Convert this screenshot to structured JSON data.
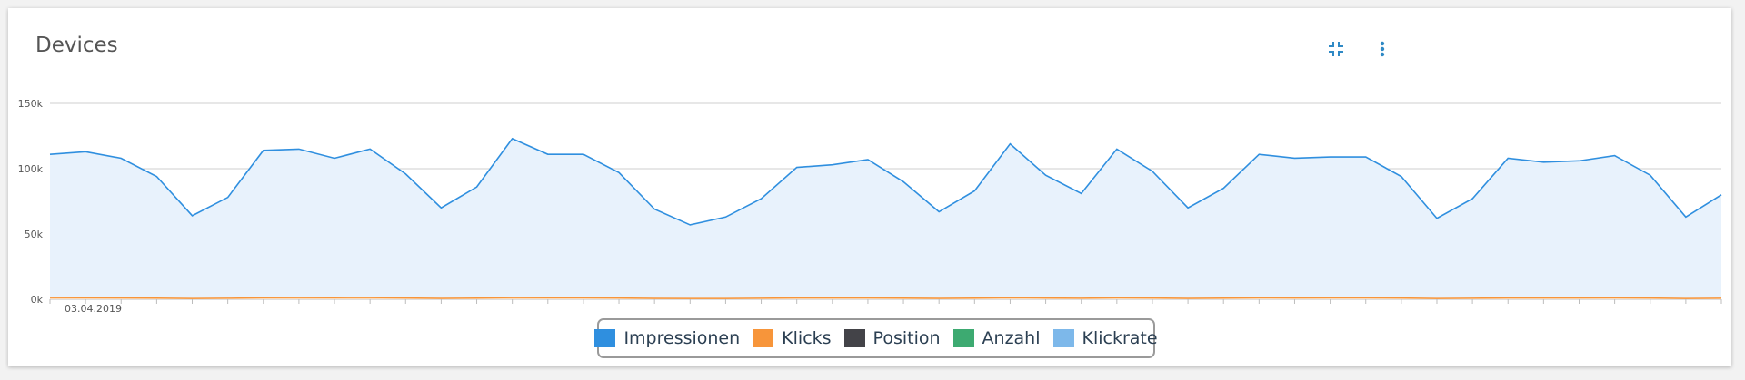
{
  "card": {
    "title": "Devices",
    "icons": {
      "collapse": "collapse-icon",
      "menu": "more-vert-icon"
    },
    "accent_color": "#2f89c5"
  },
  "chart_data": {
    "type": "area",
    "title": "Devices",
    "xlabel": "",
    "ylabel": "",
    "ylim": [
      0,
      150000
    ],
    "yticks": [
      0,
      50000,
      100000,
      150000
    ],
    "ytick_labels": [
      "0k",
      "50k",
      "100k",
      "150k"
    ],
    "x_tick_label": "03.04.2019",
    "grid": true,
    "legend_position": "bottom",
    "series": [
      {
        "name": "Impressionen",
        "color": "#2f8fdf",
        "fill": "#e8f2fc",
        "values": [
          111000,
          113000,
          108000,
          94000,
          64000,
          78000,
          114000,
          115000,
          108000,
          115000,
          96000,
          70000,
          86000,
          123000,
          111000,
          111000,
          97000,
          69000,
          57000,
          63000,
          77000,
          101000,
          103000,
          107000,
          90000,
          67000,
          83000,
          119000,
          95000,
          81000,
          115000,
          98000,
          70000,
          85000,
          111000,
          108000,
          109000,
          109000,
          94000,
          62000,
          77000,
          108000,
          105000,
          106000,
          110000,
          95000,
          63000,
          80000
        ]
      },
      {
        "name": "Klicks",
        "color": "#f7953a",
        "values": [
          1300,
          1200,
          1100,
          900,
          600,
          800,
          1200,
          1300,
          1200,
          1300,
          1000,
          700,
          900,
          1300,
          1200,
          1200,
          1000,
          700,
          600,
          600,
          800,
          1100,
          1100,
          1100,
          900,
          700,
          900,
          1300,
          1000,
          800,
          1200,
          1000,
          700,
          900,
          1200,
          1100,
          1200,
          1200,
          1000,
          600,
          800,
          1100,
          1100,
          1100,
          1200,
          1000,
          600,
          800
        ]
      },
      {
        "name": "Position",
        "color": "#434348",
        "values": []
      },
      {
        "name": "Anzahl",
        "color": "#3daa71",
        "values": []
      },
      {
        "name": "Klickrate",
        "color": "#7db8ea",
        "values": []
      }
    ]
  }
}
